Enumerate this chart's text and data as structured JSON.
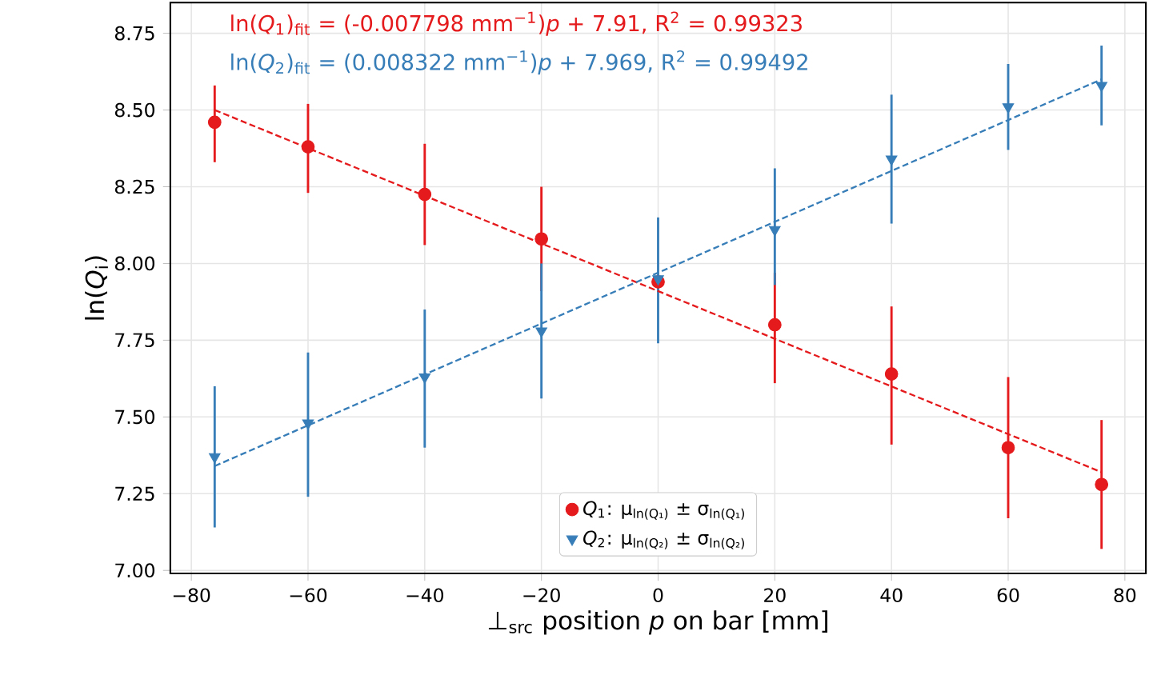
{
  "chart_data": {
    "type": "scatter",
    "xlabel": "⊥$_{src}$ position *p* on bar [mm]",
    "ylabel": "ln(*Q*$_{i}$)",
    "annotations": [
      "ln(*Q*$_{1}$)$_{fit}$ = (-0.007798 mm$^{−1}$)*p* + 7.91, R$^{2}$ = 0.99323",
      "ln(*Q*$_{2}$)$_{fit}$ = (0.008322 mm$^{−1}$)*p* + 7.969, R$^{2}$ = 0.99492"
    ],
    "xlim": [
      -83.6,
      83.6
    ],
    "ylim": [
      6.99,
      8.85
    ],
    "xticks": [
      {
        "value": -80,
        "label": "−80"
      },
      {
        "value": -60,
        "label": "−60"
      },
      {
        "value": -40,
        "label": "−40"
      },
      {
        "value": -20,
        "label": "−20"
      },
      0,
      20,
      40,
      60,
      80
    ],
    "yticks": [
      {
        "value": 7,
        "label": "7.00"
      },
      {
        "value": 7.25,
        "label": "7.25"
      },
      {
        "value": 7.5,
        "label": "7.50"
      },
      {
        "value": 7.75,
        "label": "7.75"
      },
      {
        "value": 8,
        "label": "8.00"
      },
      {
        "value": 8.25,
        "label": "8.25"
      },
      {
        "value": 8.5,
        "label": "8.50"
      },
      {
        "value": 8.75,
        "label": "8.75"
      }
    ],
    "grid": true,
    "legend": "bottom",
    "series": [
      {
        "name": "*Q*$_{1}$: μ$_{ln(Q₁)}$ ± σ$_{ln(Q₁)}$",
        "color": "#e41a1c",
        "marker": "circle",
        "x": [
          -76,
          -60,
          -40,
          -20,
          0,
          20,
          40,
          60,
          76
        ],
        "values": [
          8.46,
          8.38,
          8.225,
          8.08,
          7.94,
          7.8,
          7.64,
          7.4,
          7.28
        ],
        "errors": [
          [
            8.33,
            8.58
          ],
          [
            8.23,
            8.52
          ],
          [
            8.06,
            8.39
          ],
          [
            7.91,
            8.25
          ],
          null,
          [
            7.61,
            7.97
          ],
          [
            7.41,
            7.86
          ],
          [
            7.17,
            7.63
          ],
          [
            7.07,
            7.49
          ]
        ]
      },
      {
        "name": "*Q*$_{2}$: μ$_{ln(Q₂)}$ ± σ$_{ln(Q₂)}$",
        "color": "#377eb8",
        "marker": "triangle",
        "x": [
          -76,
          -60,
          -40,
          -20,
          0,
          20,
          40,
          60,
          76
        ],
        "values": [
          7.37,
          7.48,
          7.63,
          7.78,
          7.95,
          8.11,
          8.34,
          8.51,
          8.58
        ],
        "errors": [
          [
            7.14,
            7.6
          ],
          [
            7.24,
            7.71
          ],
          [
            7.4,
            7.85
          ],
          [
            7.56,
            8.0
          ],
          [
            7.74,
            8.15
          ],
          [
            7.93,
            8.31
          ],
          [
            8.13,
            8.55
          ],
          [
            8.37,
            8.65
          ],
          [
            8.45,
            8.71
          ]
        ]
      },
      {
        "type": "line",
        "line_style": "dashed",
        "color": "#e41a1c",
        "x": [
          -76,
          76
        ],
        "values": [
          8.5,
          7.32
        ]
      },
      {
        "type": "line",
        "line_style": "dashed",
        "color": "#377eb8",
        "x": [
          -76,
          76
        ],
        "values": [
          7.34,
          8.6
        ]
      }
    ]
  }
}
